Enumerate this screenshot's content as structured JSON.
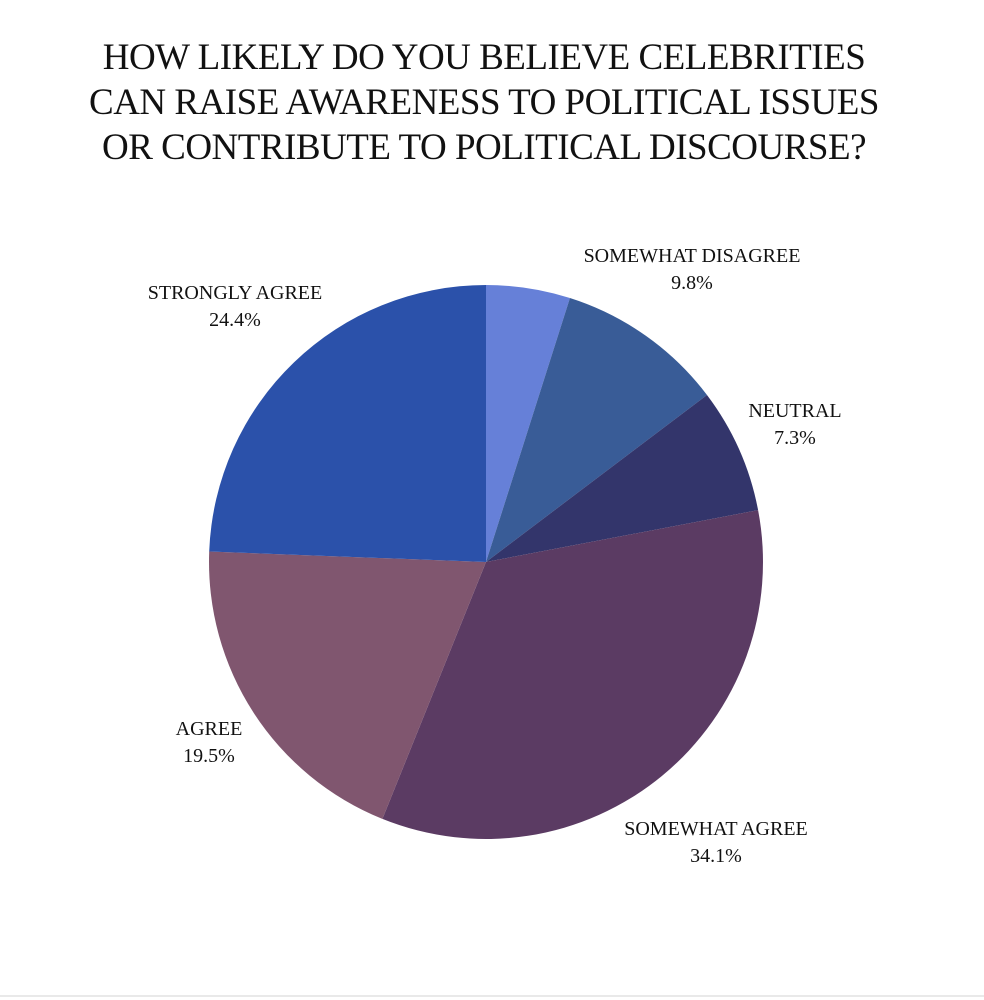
{
  "chart_data": {
    "type": "pie",
    "title": [
      "HOW LIKELY DO YOU BELIEVE CELEBRITIES",
      "CAN RAISE AWARENESS TO POLITICAL ISSUES",
      "OR CONTRIBUTE TO POLITICAL DISCOURSE?"
    ],
    "slices": [
      {
        "label": "",
        "value": 4.9,
        "value_label": "",
        "color": "#6680d8"
      },
      {
        "label": "SOMEWHAT DISAGREE",
        "value": 9.8,
        "value_label": "9.8%",
        "color": "#395c97"
      },
      {
        "label": "NEUTRAL",
        "value": 7.3,
        "value_label": "7.3%",
        "color": "#33356b"
      },
      {
        "label": "SOMEWHAT AGREE",
        "value": 34.1,
        "value_label": "34.1%",
        "color": "#5b3b63"
      },
      {
        "label": "AGREE",
        "value": 19.5,
        "value_label": "19.5%",
        "color": "#80566f"
      },
      {
        "label": "STRONGLY AGREE",
        "value": 24.4,
        "value_label": "24.4%",
        "color": "#2b51aa"
      }
    ],
    "start_angle": "top",
    "direction": "clockwise",
    "labels": "outside"
  }
}
